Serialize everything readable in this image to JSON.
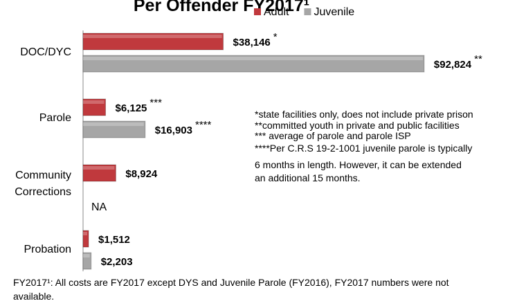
{
  "chart_data": {
    "type": "hbar",
    "title": "Per Offender FY2017¹",
    "categories": [
      "DOC/DYC",
      "Parole",
      "Community Corrections",
      "Probation"
    ],
    "series": [
      {
        "name": "Adult",
        "color": "#c0393d",
        "values": [
          38146,
          6125,
          8924,
          1512
        ],
        "value_labels": [
          "$38,146",
          "$6,125",
          "$8,924",
          "$1,512"
        ],
        "value_marks": [
          "*",
          "***",
          null,
          null
        ]
      },
      {
        "name": "Juvenile",
        "color": "#a6a6a6",
        "values": [
          92824,
          16903,
          null,
          2203
        ],
        "value_labels": [
          "$92,824",
          "$16,903",
          "NA",
          "$2,203"
        ],
        "value_marks": [
          "**",
          "****",
          null,
          null
        ]
      }
    ],
    "xlim": [
      0,
      100000
    ],
    "legend": "top-right",
    "notes": [
      "*state facilities only, does not include private prison",
      "**committed youth in private and public facilities",
      "*** average of parole and parole ISP",
      "****Per C.R.S  19-2-1001 juvenile parole is typically",
      "6 months in length.  However, it can be extended",
      "an additional 15 months."
    ],
    "footnote": [
      "FY2017¹:  All costs are FY2017 except DYS and Juvenile Parole (FY2016), FY2017 numbers were not",
      "available."
    ]
  }
}
